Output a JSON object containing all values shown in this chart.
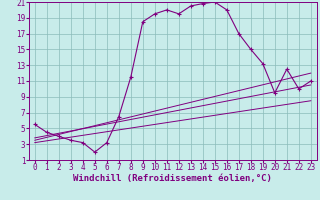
{
  "xlabel": "Windchill (Refroidissement éolien,°C)",
  "bg_color": "#c8ecea",
  "grid_color": "#8bbcba",
  "line_color": "#800080",
  "xlim": [
    -0.5,
    23.5
  ],
  "ylim": [
    1,
    21
  ],
  "xticks": [
    0,
    1,
    2,
    3,
    4,
    5,
    6,
    7,
    8,
    9,
    10,
    11,
    12,
    13,
    14,
    15,
    16,
    17,
    18,
    19,
    20,
    21,
    22,
    23
  ],
  "yticks": [
    1,
    3,
    5,
    7,
    9,
    11,
    13,
    15,
    17,
    19,
    21
  ],
  "main_x": [
    0,
    1,
    2,
    3,
    4,
    5,
    6,
    7,
    8,
    9,
    10,
    11,
    12,
    13,
    14,
    15,
    16,
    17,
    18,
    19,
    20,
    21,
    22,
    23
  ],
  "main_y": [
    5.5,
    4.5,
    4.0,
    3.5,
    3.2,
    2.0,
    3.2,
    6.5,
    11.5,
    18.5,
    19.5,
    20.0,
    19.5,
    20.5,
    20.8,
    21.0,
    20.0,
    17.0,
    15.0,
    13.2,
    9.5,
    12.5,
    10.0,
    11.0
  ],
  "line1_x": [
    0,
    23
  ],
  "line1_y": [
    3.8,
    10.5
  ],
  "line2_x": [
    0,
    23
  ],
  "line2_y": [
    3.5,
    12.0
  ],
  "line3_x": [
    0,
    23
  ],
  "line3_y": [
    3.2,
    8.5
  ],
  "fontsize_label": 6.5,
  "fontsize_tick": 5.5
}
